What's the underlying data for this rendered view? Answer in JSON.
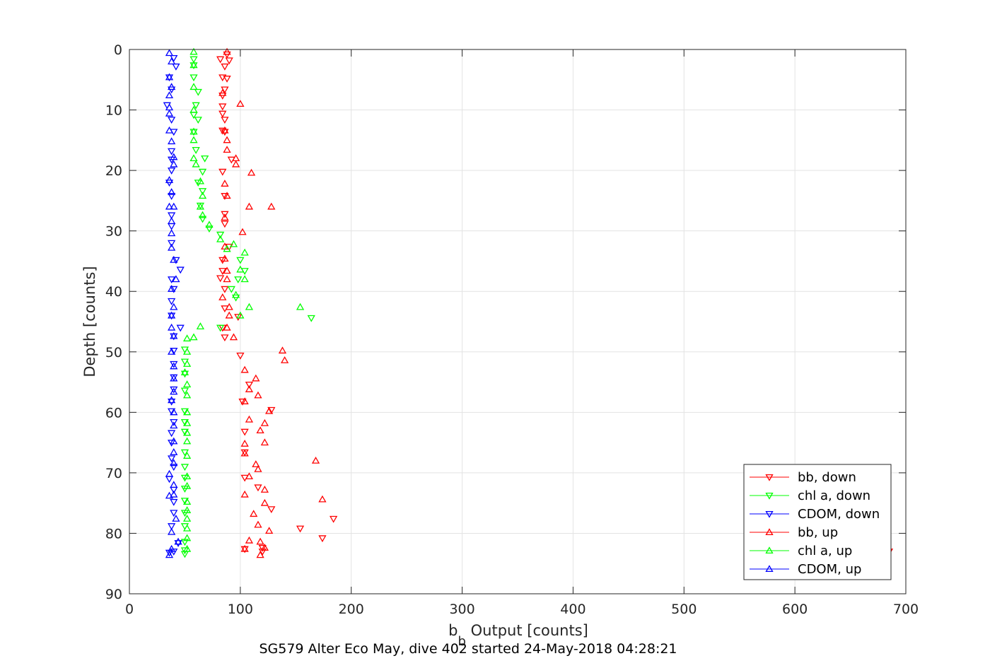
{
  "chart_data": {
    "type": "scatter",
    "xlabel_main": "b",
    "xlabel_sub": "b",
    "xlabel_rest": " Output [counts]",
    "ylabel": "Depth [counts]",
    "caption": "SG579 Alter Eco May, dive 402 started 24-May-2018 04:28:21",
    "xlim": [
      0,
      700
    ],
    "ylim": [
      0,
      90
    ],
    "y_reversed": true,
    "xticks": [
      0,
      100,
      200,
      300,
      400,
      500,
      600,
      700
    ],
    "yticks": [
      0,
      10,
      20,
      30,
      40,
      50,
      60,
      70,
      80,
      90
    ],
    "grid": true,
    "legend_position": "bottom-right",
    "series": [
      {
        "name": "bb, down",
        "color": "#ff0000",
        "marker": "triangle-down",
        "points": [
          [
            88,
            0.8
          ],
          [
            82,
            1.6
          ],
          [
            90,
            1.8
          ],
          [
            86,
            2.8
          ],
          [
            84,
            4.6
          ],
          [
            88,
            4.8
          ],
          [
            86,
            6.6
          ],
          [
            84,
            7.6
          ],
          [
            84,
            9.4
          ],
          [
            84,
            10.6
          ],
          [
            86,
            11.6
          ],
          [
            84,
            13.4
          ],
          [
            86,
            13.6
          ],
          [
            92,
            18.2
          ],
          [
            84,
            20.2
          ],
          [
            86,
            24.2
          ],
          [
            86,
            27.2
          ],
          [
            86,
            28.8
          ],
          [
            90,
            32.6
          ],
          [
            84,
            34.8
          ],
          [
            84,
            36.6
          ],
          [
            82,
            37.8
          ],
          [
            86,
            39.6
          ],
          [
            86,
            42.8
          ],
          [
            98,
            44.2
          ],
          [
            84,
            46
          ],
          [
            86,
            47.6
          ],
          [
            100,
            50.6
          ],
          [
            108,
            55.4
          ],
          [
            102,
            58.2
          ],
          [
            128,
            59.6
          ],
          [
            104,
            63.2
          ],
          [
            104,
            66.6
          ],
          [
            104,
            70.8
          ],
          [
            116,
            72.4
          ],
          [
            128,
            76
          ],
          [
            184,
            77.6
          ],
          [
            154,
            79.2
          ],
          [
            174,
            80.8
          ],
          [
            120,
            82.4
          ],
          [
            104,
            82.6
          ],
          [
            120,
            83
          ]
        ]
      },
      {
        "name": "chl a, down",
        "color": "#00ff00",
        "marker": "triangle-down",
        "points": [
          [
            58,
            1.6
          ],
          [
            58,
            2.6
          ],
          [
            58,
            4.6
          ],
          [
            62,
            7
          ],
          [
            60,
            9.2
          ],
          [
            58,
            10.8
          ],
          [
            62,
            11.6
          ],
          [
            58,
            13.6
          ],
          [
            60,
            16.6
          ],
          [
            68,
            18
          ],
          [
            66,
            20.2
          ],
          [
            62,
            22
          ],
          [
            66,
            23.4
          ],
          [
            64,
            25.8
          ],
          [
            66,
            28
          ],
          [
            72,
            29.6
          ],
          [
            82,
            30.6
          ],
          [
            100,
            34.8
          ],
          [
            104,
            36.6
          ],
          [
            98,
            38
          ],
          [
            92,
            39.6
          ],
          [
            96,
            41
          ],
          [
            164,
            44.4
          ],
          [
            82,
            46
          ],
          [
            50,
            49.6
          ],
          [
            50,
            51.6
          ],
          [
            50,
            53.6
          ],
          [
            50,
            56.4
          ],
          [
            50,
            59.8
          ],
          [
            50,
            61.6
          ],
          [
            50,
            63.2
          ],
          [
            50,
            66.6
          ],
          [
            50,
            69
          ],
          [
            50,
            70.8
          ],
          [
            50,
            72.6
          ],
          [
            50,
            74.6
          ],
          [
            50,
            76.6
          ],
          [
            50,
            78.8
          ],
          [
            50,
            81.4
          ],
          [
            50,
            82.8
          ],
          [
            50,
            83.4
          ]
        ]
      },
      {
        "name": "CDOM, down",
        "color": "#0000ff",
        "marker": "triangle-down",
        "points": [
          [
            40,
            1.4
          ],
          [
            42,
            2.8
          ],
          [
            36,
            4.6
          ],
          [
            38,
            6.6
          ],
          [
            34,
            9.2
          ],
          [
            38,
            11.6
          ],
          [
            40,
            13.6
          ],
          [
            38,
            16.8
          ],
          [
            38,
            18.2
          ],
          [
            38,
            20
          ],
          [
            36,
            22
          ],
          [
            38,
            24.2
          ],
          [
            38,
            27.4
          ],
          [
            38,
            29.2
          ],
          [
            38,
            32
          ],
          [
            42,
            34.8
          ],
          [
            46,
            36.4
          ],
          [
            38,
            38
          ],
          [
            40,
            39.6
          ],
          [
            38,
            41.6
          ],
          [
            38,
            44
          ],
          [
            46,
            46
          ],
          [
            40,
            47.4
          ],
          [
            40,
            49.8
          ],
          [
            40,
            52
          ],
          [
            40,
            54.2
          ],
          [
            40,
            56.2
          ],
          [
            38,
            58.2
          ],
          [
            38,
            59.8
          ],
          [
            40,
            61.6
          ],
          [
            38,
            63.4
          ],
          [
            38,
            65
          ],
          [
            38,
            67.6
          ],
          [
            40,
            69
          ],
          [
            36,
            71
          ],
          [
            40,
            72.8
          ],
          [
            40,
            74.8
          ],
          [
            40,
            76.6
          ],
          [
            38,
            78.8
          ],
          [
            44,
            81.6
          ],
          [
            40,
            83
          ],
          [
            36,
            83.2
          ]
        ]
      },
      {
        "name": "bb, up",
        "color": "#ff0000",
        "marker": "triangle-up",
        "points": [
          [
            88,
            0.4
          ],
          [
            84,
            7.2
          ],
          [
            100,
            9
          ],
          [
            86,
            13.4
          ],
          [
            88,
            15
          ],
          [
            88,
            16.6
          ],
          [
            96,
            18
          ],
          [
            96,
            19
          ],
          [
            110,
            20.4
          ],
          [
            86,
            22.2
          ],
          [
            88,
            24.2
          ],
          [
            108,
            26
          ],
          [
            128,
            26
          ],
          [
            86,
            27.8
          ],
          [
            102,
            30.2
          ],
          [
            86,
            32.6
          ],
          [
            86,
            34.6
          ],
          [
            88,
            36.6
          ],
          [
            88,
            38
          ],
          [
            84,
            41
          ],
          [
            90,
            42.6
          ],
          [
            90,
            44
          ],
          [
            88,
            46
          ],
          [
            94,
            47.6
          ],
          [
            138,
            49.8
          ],
          [
            140,
            51.4
          ],
          [
            104,
            53
          ],
          [
            114,
            54.4
          ],
          [
            108,
            56.2
          ],
          [
            116,
            57.2
          ],
          [
            104,
            58.2
          ],
          [
            126,
            59.8
          ],
          [
            108,
            61.2
          ],
          [
            122,
            61.8
          ],
          [
            118,
            63
          ],
          [
            104,
            65.2
          ],
          [
            122,
            65
          ],
          [
            104,
            66.8
          ],
          [
            168,
            68
          ],
          [
            114,
            68.6
          ],
          [
            116,
            69.4
          ],
          [
            108,
            70.6
          ],
          [
            104,
            73.6
          ],
          [
            122,
            72.8
          ],
          [
            174,
            74.4
          ],
          [
            122,
            75
          ],
          [
            112,
            76.8
          ],
          [
            116,
            78.6
          ],
          [
            126,
            79.6
          ],
          [
            108,
            81.2
          ],
          [
            118,
            81.4
          ],
          [
            122,
            82.4
          ],
          [
            104,
            82.6
          ],
          [
            118,
            83.6
          ]
        ]
      },
      {
        "name": "chl a, up",
        "color": "#00ff00",
        "marker": "triangle-up",
        "points": [
          [
            58,
            0.4
          ],
          [
            58,
            2.6
          ],
          [
            58,
            6.2
          ],
          [
            58,
            10
          ],
          [
            58,
            13.6
          ],
          [
            58,
            15
          ],
          [
            58,
            18
          ],
          [
            60,
            19
          ],
          [
            64,
            21.8
          ],
          [
            66,
            24.2
          ],
          [
            64,
            26
          ],
          [
            66,
            27.4
          ],
          [
            72,
            29
          ],
          [
            82,
            31.4
          ],
          [
            94,
            32.2
          ],
          [
            88,
            33
          ],
          [
            104,
            33.6
          ],
          [
            100,
            36.4
          ],
          [
            104,
            38
          ],
          [
            96,
            40.6
          ],
          [
            108,
            42.6
          ],
          [
            154,
            42.6
          ],
          [
            100,
            44
          ],
          [
            64,
            45.8
          ],
          [
            58,
            47.6
          ],
          [
            52,
            47.8
          ],
          [
            52,
            50
          ],
          [
            52,
            52
          ],
          [
            50,
            53.4
          ],
          [
            52,
            55.4
          ],
          [
            52,
            57.2
          ],
          [
            52,
            60
          ],
          [
            52,
            61.8
          ],
          [
            52,
            63.4
          ],
          [
            52,
            64.8
          ],
          [
            52,
            67.2
          ],
          [
            52,
            70.6
          ],
          [
            52,
            72.2
          ],
          [
            52,
            74.8
          ],
          [
            52,
            76.2
          ],
          [
            52,
            77.6
          ],
          [
            52,
            79.2
          ],
          [
            52,
            80.8
          ],
          [
            52,
            82.6
          ]
        ]
      },
      {
        "name": "CDOM, up",
        "color": "#0000ff",
        "marker": "triangle-up",
        "points": [
          [
            36,
            0.6
          ],
          [
            38,
            2
          ],
          [
            36,
            4.6
          ],
          [
            38,
            6.2
          ],
          [
            36,
            7.6
          ],
          [
            36,
            9.6
          ],
          [
            36,
            10.6
          ],
          [
            36,
            13.4
          ],
          [
            38,
            15.2
          ],
          [
            40,
            17.8
          ],
          [
            40,
            19
          ],
          [
            36,
            21.6
          ],
          [
            38,
            23.6
          ],
          [
            36,
            26
          ],
          [
            40,
            26
          ],
          [
            38,
            28.4
          ],
          [
            38,
            30.4
          ],
          [
            38,
            32.8
          ],
          [
            40,
            34.8
          ],
          [
            42,
            38
          ],
          [
            38,
            39.6
          ],
          [
            40,
            42.6
          ],
          [
            38,
            44
          ],
          [
            38,
            46
          ],
          [
            40,
            47.4
          ],
          [
            38,
            50
          ],
          [
            40,
            52.4
          ],
          [
            40,
            54.4
          ],
          [
            40,
            56.6
          ],
          [
            38,
            58
          ],
          [
            40,
            60
          ],
          [
            40,
            62.2
          ],
          [
            40,
            64.8
          ],
          [
            40,
            66.6
          ],
          [
            40,
            68.4
          ],
          [
            36,
            70.2
          ],
          [
            40,
            72
          ],
          [
            40,
            73.6
          ],
          [
            36,
            73.8
          ],
          [
            42,
            77.6
          ],
          [
            38,
            79.8
          ],
          [
            44,
            81.4
          ],
          [
            38,
            82.6
          ],
          [
            36,
            83.6
          ]
        ]
      }
    ],
    "outlier": {
      "series": "bb, down",
      "x": 685,
      "y": 83
    }
  }
}
